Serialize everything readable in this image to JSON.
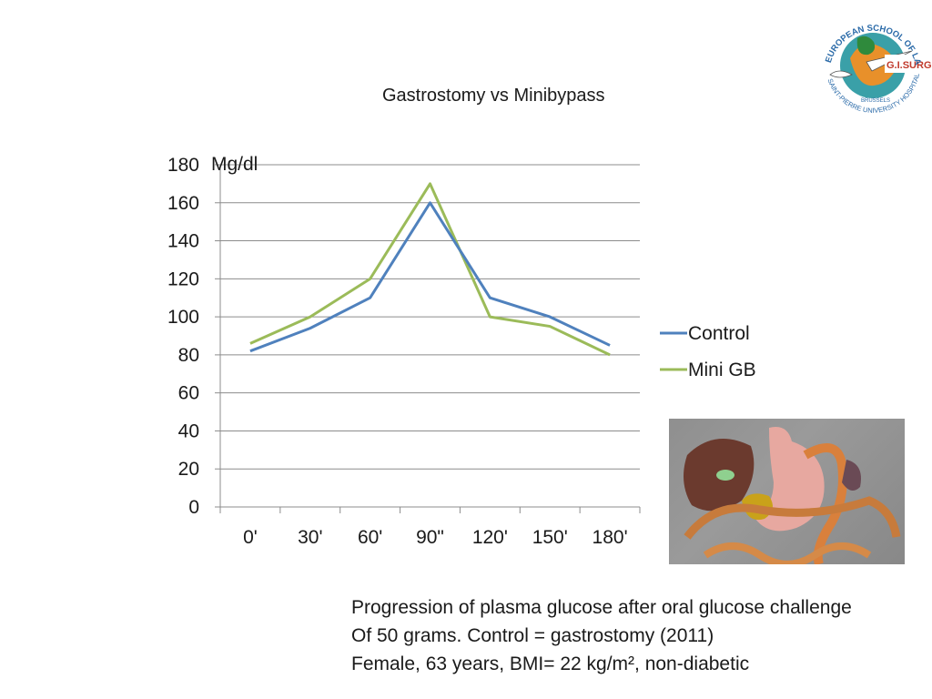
{
  "title": "Gastrostomy vs Minibypass",
  "logo_text": {
    "top": "EUROPEAN SCHOOL OF LAPAROSCOPIC SURGERY",
    "badge": "G.I. SURGERY",
    "bottom": "SAINT-PIERRE UNIVERSITY HOSPITAL",
    "city": "BRUSSELS"
  },
  "colors": {
    "control": "#4f81bd",
    "mini_gb": "#9bbb59",
    "grid": "#8c8c8c"
  },
  "caption": {
    "line1": "Progression of plasma glucose after oral glucose challenge",
    "line2": "Of 50 grams. Control = gastrostomy (2011)",
    "line3": "Female, 63 years, BMI= 22 kg/m², non-diabetic"
  },
  "chart_data": {
    "type": "line",
    "title": "Gastrostomy vs Minibypass",
    "xlabel": "",
    "ylabel": "Mg/dl",
    "categories": [
      "0'",
      "30'",
      "60'",
      "90\"",
      "120'",
      "150'",
      "180'"
    ],
    "series": [
      {
        "name": "Control",
        "values": [
          82,
          94,
          110,
          160,
          110,
          100,
          85
        ]
      },
      {
        "name": "Mini GB",
        "values": [
          86,
          100,
          120,
          170,
          100,
          95,
          80
        ]
      }
    ],
    "ylim": [
      0,
      180
    ],
    "yticks": [
      0,
      20,
      40,
      60,
      80,
      100,
      120,
      140,
      160,
      180
    ],
    "grid": true,
    "legend_position": "right"
  }
}
